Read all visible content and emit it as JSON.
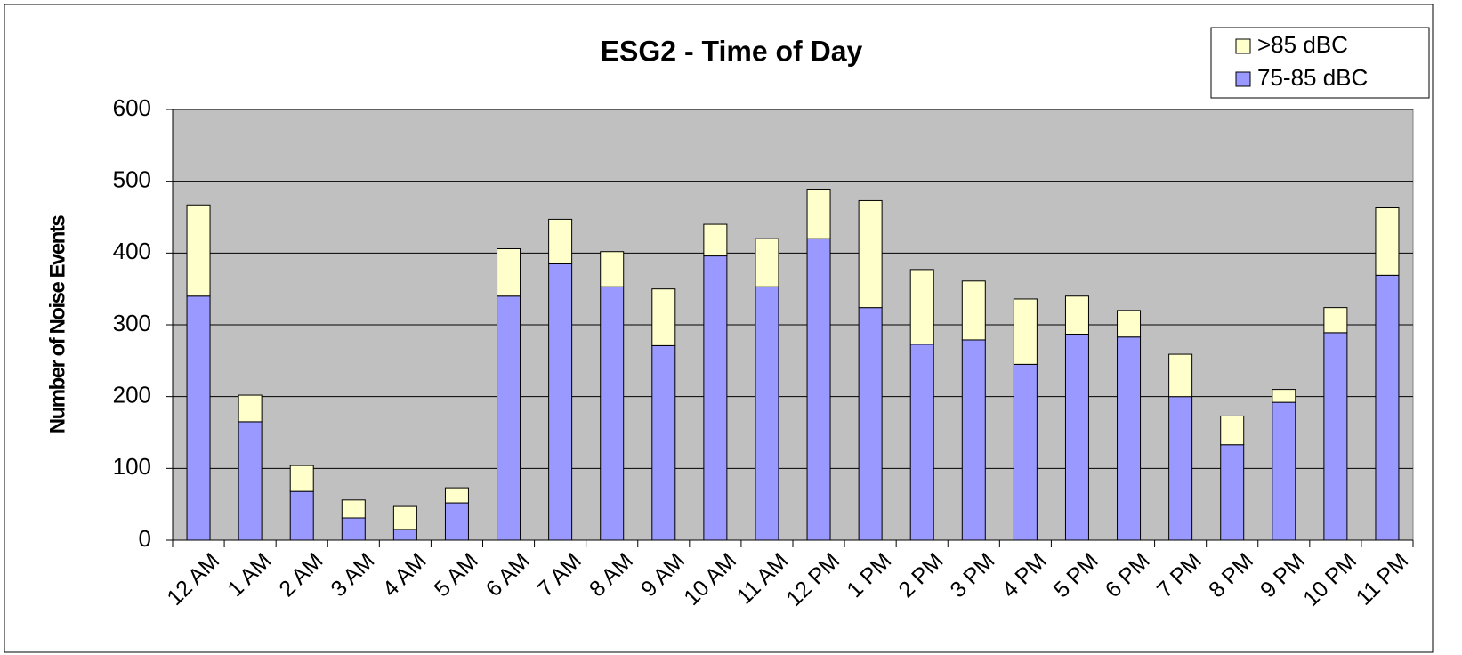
{
  "chart_data": {
    "type": "stacked_bar",
    "title": "ESG2 - Time of Day",
    "y_label": "Number of Noise Events",
    "categories": [
      "12 AM",
      "1 AM",
      "2 AM",
      "3 AM",
      "4 AM",
      "5 AM",
      "6 AM",
      "7 AM",
      "8 AM",
      "9 AM",
      "10 AM",
      "11 AM",
      "12 PM",
      "1 PM",
      "2 PM",
      "3 PM",
      "4 PM",
      "5 PM",
      "6 PM",
      "7 PM",
      "8 PM",
      "9 PM",
      "10 PM",
      "11 PM"
    ],
    "series": [
      {
        "name": "75-85 dBC",
        "color": "#9999ff",
        "values": [
          340,
          165,
          68,
          31,
          15,
          52,
          340,
          385,
          353,
          271,
          396,
          353,
          420,
          324,
          273,
          279,
          245,
          287,
          283,
          200,
          133,
          192,
          289,
          369
        ]
      },
      {
        "name": ">85 dBC",
        "color": "#ffffcc",
        "values": [
          127,
          37,
          36,
          25,
          32,
          21,
          66,
          62,
          49,
          79,
          44,
          67,
          69,
          149,
          104,
          82,
          91,
          53,
          37,
          59,
          40,
          18,
          35,
          94
        ]
      }
    ],
    "ylim": [
      0,
      600
    ],
    "yticks": [
      0,
      100,
      200,
      300,
      400,
      500,
      600
    ],
    "grid": true,
    "legend": "top-right",
    "plot_background": "#c0c0c0"
  }
}
